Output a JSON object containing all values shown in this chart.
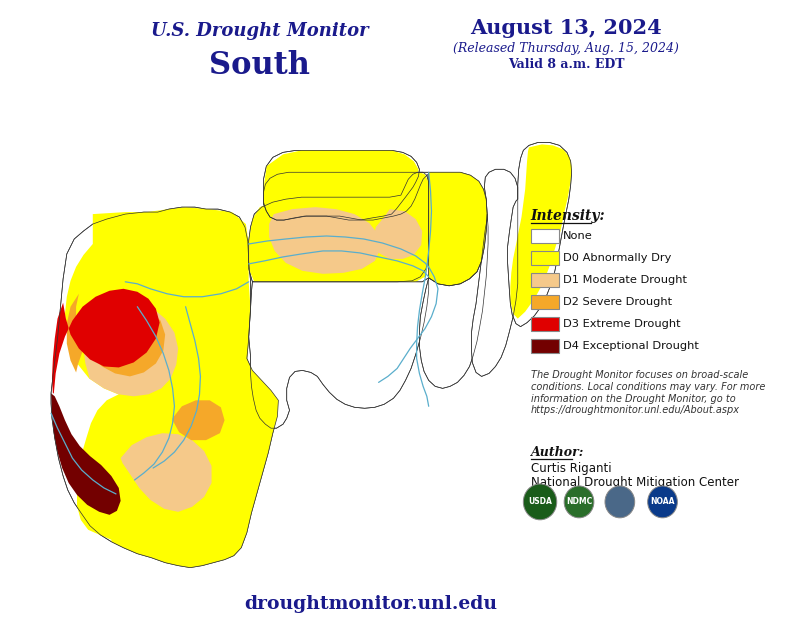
{
  "title_line1": "U.S. Drought Monitor",
  "title_line2": "South",
  "date_line1": "August 13, 2024",
  "date_line2": "(Released Thursday, Aug. 15, 2024)",
  "date_line3": "Valid 8 a.m. EDT",
  "legend_title": "Intensity:",
  "legend_items": [
    {
      "color": "#ffffff",
      "label": "None"
    },
    {
      "color": "#ffff00",
      "label": "D0 Abnormally Dry"
    },
    {
      "color": "#f5c98a",
      "label": "D1 Moderate Drought"
    },
    {
      "color": "#f5a829",
      "label": "D2 Severe Drought"
    },
    {
      "color": "#e00000",
      "label": "D3 Extreme Drought"
    },
    {
      "color": "#730000",
      "label": "D4 Exceptional Drought"
    }
  ],
  "disclaimer_text": "The Drought Monitor focuses on broad-scale\nconditions. Local conditions may vary. For more\ninformation on the Drought Monitor, go to\nhttps://droughtmonitor.unl.edu/About.aspx",
  "author_label": "Author:",
  "author_name": "Curtis Riganti",
  "author_org": "National Drought Mitigation Center",
  "website": "droughtmonitor.unl.edu",
  "bg_color": "#ffffff",
  "title_color": "#1a1a8c",
  "text_color": "#1a1a1a",
  "legend_box_edge": "#888888"
}
